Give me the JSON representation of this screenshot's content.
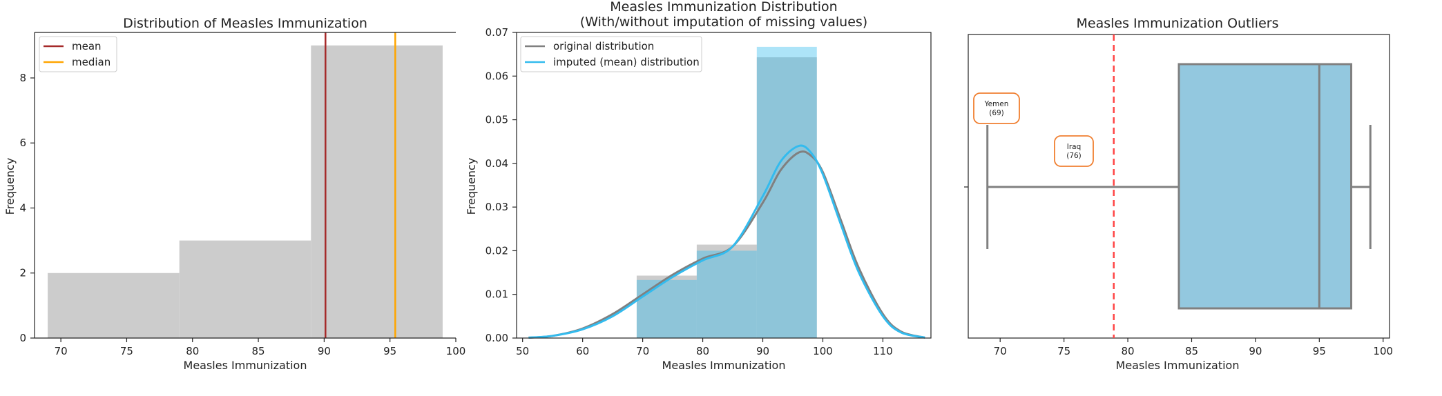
{
  "chart_data": [
    {
      "type": "histogram",
      "title": "Distribution of Measles Immunization",
      "xlabel": "Measles Immunization",
      "ylabel": "Frequency",
      "xlim": [
        68,
        100
      ],
      "ylim": [
        0,
        9.4
      ],
      "xticks": [
        70,
        75,
        80,
        85,
        90,
        95,
        100
      ],
      "yticks": [
        0,
        2,
        4,
        6,
        8
      ],
      "bins": [
        {
          "start": 69,
          "end": 79,
          "count": 2
        },
        {
          "start": 79,
          "end": 89,
          "count": 3
        },
        {
          "start": 89,
          "end": 99,
          "count": 9
        }
      ],
      "vlines": [
        {
          "name": "mean",
          "value": 90.1,
          "color": "#a52a2a"
        },
        {
          "name": "median",
          "value": 95.4,
          "color": "#ffa500"
        }
      ],
      "legend": [
        "mean",
        "median"
      ],
      "bar_color": "#cccccc"
    },
    {
      "type": "histogram+kde",
      "title": "Measles Immunization Distribution",
      "subtitle": "(With/without imputation of missing values)",
      "xlabel": "Measles Immunization",
      "ylabel": "Frequency",
      "xlim": [
        49,
        118
      ],
      "ylim": [
        0,
        0.07
      ],
      "xticks": [
        50,
        60,
        70,
        80,
        90,
        100,
        110
      ],
      "yticks": [
        0.0,
        0.01,
        0.02,
        0.03,
        0.04,
        0.05,
        0.06,
        0.07
      ],
      "ytick_labels": [
        "0.00",
        "0.01",
        "0.02",
        "0.03",
        "0.04",
        "0.05",
        "0.06",
        "0.07"
      ],
      "series": [
        {
          "name": "original distribution",
          "color": "#808080",
          "bins": [
            {
              "start": 69,
              "end": 79,
              "density": 0.0143
            },
            {
              "start": 79,
              "end": 89,
              "density": 0.0214
            },
            {
              "start": 89,
              "end": 99,
              "density": 0.0643
            }
          ],
          "kde_x": [
            51,
            55,
            60,
            65,
            70,
            75,
            80,
            85,
            90,
            93,
            96,
            98,
            100,
            103,
            106,
            110,
            113,
            117
          ],
          "kde_y": [
            0.0001,
            0.0005,
            0.0022,
            0.0055,
            0.01,
            0.0145,
            0.0182,
            0.021,
            0.031,
            0.0385,
            0.0425,
            0.0418,
            0.038,
            0.027,
            0.016,
            0.0055,
            0.0015,
            0.0001
          ]
        },
        {
          "name": "imputed (mean) distribution",
          "color": "#33bbee",
          "bins": [
            {
              "start": 69,
              "end": 79,
              "density": 0.0133
            },
            {
              "start": 79,
              "end": 89,
              "density": 0.02
            },
            {
              "start": 89,
              "end": 99,
              "density": 0.0667
            }
          ],
          "kde_x": [
            51,
            55,
            60,
            65,
            70,
            75,
            80,
            85,
            90,
            93,
            96,
            98,
            100,
            103,
            106,
            110,
            113,
            117
          ],
          "kde_y": [
            0.0001,
            0.0005,
            0.002,
            0.005,
            0.0095,
            0.014,
            0.0178,
            0.021,
            0.0325,
            0.0405,
            0.044,
            0.0425,
            0.0375,
            0.026,
            0.015,
            0.005,
            0.0013,
            0.0001
          ]
        }
      ],
      "legend": [
        "original distribution",
        "imputed (mean) distribution"
      ]
    },
    {
      "type": "boxplot",
      "title": "Measles Immunization Outliers",
      "xlabel": "Measles Immunization",
      "xlim": [
        67.5,
        100.5
      ],
      "xticks": [
        70,
        75,
        80,
        85,
        90,
        95,
        100
      ],
      "whisker_low": 69,
      "q1": 84,
      "median": 95,
      "q3": 97.5,
      "whisker_high": 99,
      "box_color": "#93c8df",
      "reference_line": {
        "value": 78.9,
        "color": "#ff4444",
        "style": "dashed"
      },
      "annotations": [
        {
          "label": "Yemen",
          "value_text": "(69)",
          "value": 69
        },
        {
          "label": "Iraq",
          "value_text": "(76)",
          "value": 76
        }
      ]
    }
  ]
}
